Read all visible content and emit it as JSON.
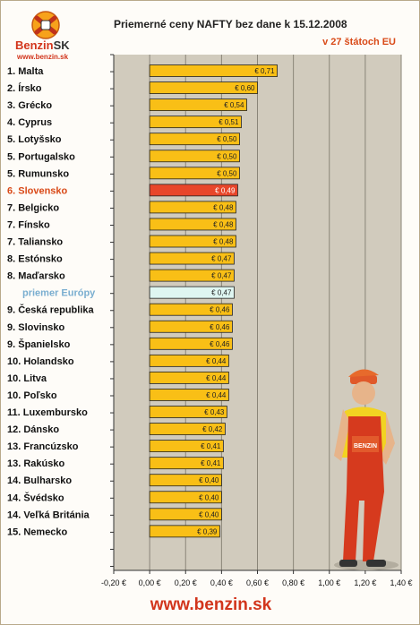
{
  "header": {
    "title": "Priemerné ceny NAFTY bez dane k 15.12.2008",
    "subtitle": "v 27 štátoch EU",
    "logo_name": "Benzin",
    "logo_sk": "SK",
    "logo_url": "www.benzin.sk"
  },
  "footer": {
    "url": "www.benzin.sk"
  },
  "colors": {
    "bar": "#f9bf16",
    "highlight": "#e8462a",
    "average": "#dff6f1",
    "plot_bg": "#d1cbbd",
    "grid": "#8a8578",
    "label": "#111111",
    "highlight_label": "#d94a18",
    "average_label": "#7aaed0"
  },
  "chart_data": {
    "type": "bar",
    "orientation": "horizontal",
    "title": "Priemerné ceny NAFTY bez dane k 15.12.2008",
    "subtitle": "v 27 štátoch EU",
    "categories": [
      "1. Malta",
      "2. Írsko",
      "3. Grécko",
      "4. Cyprus",
      "5. Lotyšsko",
      "5. Portugalsko",
      "5. Rumunsko",
      "6. Slovensko",
      "7. Belgicko",
      "7. Fínsko",
      "7. Taliansko",
      "8. Estónsko",
      "8. Maďarsko",
      "priemer Európy",
      "9. Česká republika",
      "9. Slovinsko",
      "9. Španielsko",
      "10. Holandsko",
      "10. Litva",
      "10. Poľsko",
      "11. Luxembursko",
      "12. Dánsko",
      "13. Francúzsko",
      "13. Rakúsko",
      "14. Bulharsko",
      "14. Švédsko",
      "14. Veľká Británia",
      "15. Nemecko"
    ],
    "values": [
      0.71,
      0.6,
      0.54,
      0.51,
      0.5,
      0.5,
      0.5,
      0.49,
      0.48,
      0.48,
      0.48,
      0.47,
      0.47,
      0.47,
      0.46,
      0.46,
      0.46,
      0.44,
      0.44,
      0.44,
      0.43,
      0.42,
      0.41,
      0.41,
      0.4,
      0.4,
      0.4,
      0.39
    ],
    "data_labels": [
      "€ 0,71",
      "€ 0,60",
      "€ 0,54",
      "€ 0,51",
      "€ 0,50",
      "€ 0,50",
      "€ 0,50",
      "€ 0,49",
      "€ 0,48",
      "€ 0,48",
      "€ 0,48",
      "€ 0,47",
      "€ 0,47",
      "€ 0,47",
      "€ 0,46",
      "€ 0,46",
      "€ 0,46",
      "€ 0,44",
      "€ 0,44",
      "€ 0,44",
      "€ 0,43",
      "€ 0,42",
      "€ 0,41",
      "€ 0,41",
      "€ 0,40",
      "€ 0,40",
      "€ 0,40",
      "€ 0,39"
    ],
    "highlight_index": 7,
    "average_index": 13,
    "xlim": [
      0,
      1.4
    ],
    "xticks": [
      -0.2,
      0.0,
      0.2,
      0.4,
      0.6,
      0.8,
      1.0,
      1.2,
      1.4
    ],
    "xtick_labels": [
      "-0,20 €",
      "0,00 €",
      "0,20 €",
      "0,40 €",
      "0,60 €",
      "0,80 €",
      "1,00 €",
      "1,20 €",
      "1,40 €"
    ],
    "grid": true,
    "legend": "none"
  }
}
